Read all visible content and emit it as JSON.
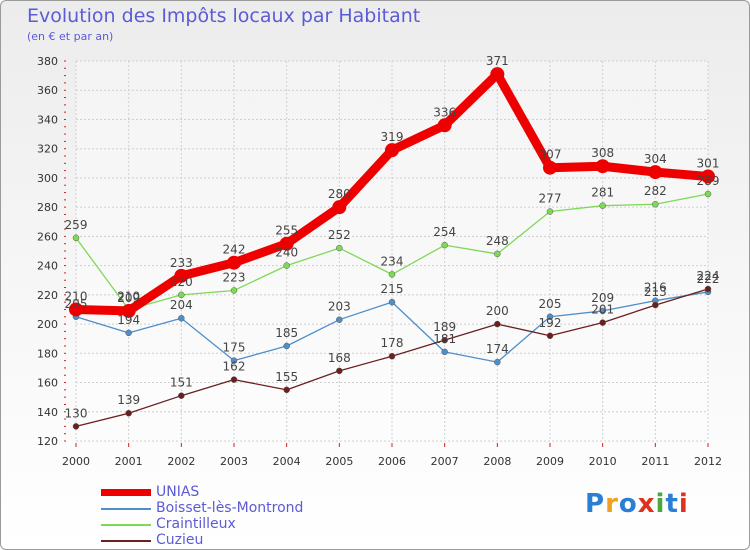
{
  "header": {
    "title": "Evolution des Impôts locaux par Habitant",
    "subtitle": "(en € et par an)"
  },
  "logo": {
    "text": "Proxiti",
    "colors": [
      "#2a7fd4",
      "#f0a020",
      "#2a7fd4",
      "#e03020",
      "#4aa83a",
      "#2a7fd4",
      "#e03020"
    ]
  },
  "chart_data": {
    "type": "line",
    "title": "Evolution des Impôts locaux par Habitant",
    "subtitle": "(en € et par an)",
    "xlabel": "",
    "ylabel": "",
    "x": [
      "2000",
      "2001",
      "2002",
      "2003",
      "2004",
      "2005",
      "2006",
      "2007",
      "2008",
      "2009",
      "2010",
      "2011",
      "2012"
    ],
    "ylim": [
      120,
      380
    ],
    "yticks": [
      120,
      140,
      160,
      180,
      200,
      220,
      240,
      260,
      280,
      300,
      320,
      340,
      360,
      380
    ],
    "grid": true,
    "legend_position": "bottom-left",
    "series": [
      {
        "name": "UNIAS",
        "color": "#ee0000",
        "values": [
          210,
          209,
          233,
          242,
          255,
          280,
          319,
          336,
          371,
          307,
          308,
          304,
          301
        ]
      },
      {
        "name": "Boisset-lès-Montrond",
        "color": "#4f8fc9",
        "values": [
          205,
          194,
          204,
          175,
          185,
          203,
          215,
          181,
          174,
          205,
          209,
          216,
          222
        ]
      },
      {
        "name": "Craintilleux",
        "color": "#7ed957",
        "values": [
          259,
          210,
          220,
          223,
          240,
          252,
          234,
          254,
          248,
          277,
          281,
          282,
          289
        ]
      },
      {
        "name": "Cuzieu",
        "color": "#6b1f1f",
        "values": [
          130,
          139,
          151,
          162,
          155,
          168,
          178,
          189,
          200,
          192,
          201,
          213,
          224
        ]
      }
    ]
  }
}
